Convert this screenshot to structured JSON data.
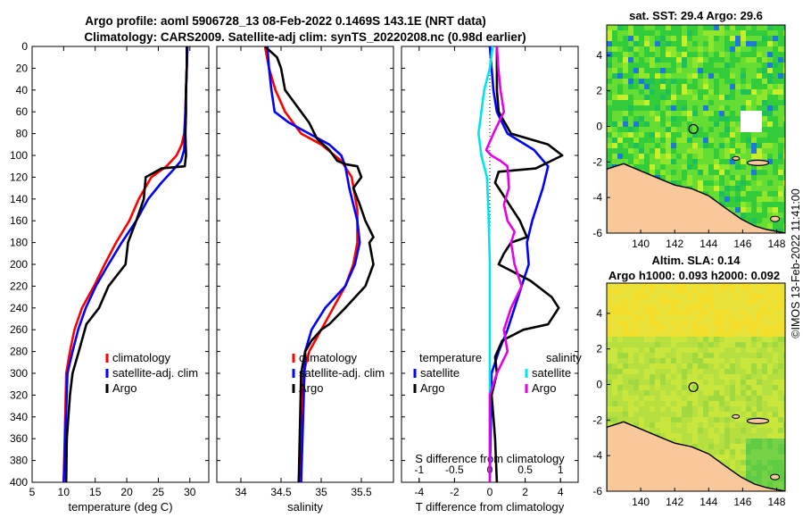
{
  "header": {
    "title_line1": "Argo profile: aoml 5906728_13 08-Feb-2022 0.1469S 143.1E (NRT data)",
    "title_line2": "Climatology: CARS2009. Satellite-adj clim: synTS_20220208.nc (0.98d earlier)"
  },
  "watermark": "©IMOS 13-Feb-2022 11:41:00",
  "colors": {
    "climatology": "#ff0000",
    "satellite": "#0000ff",
    "argo": "#000000",
    "sal_satellite": "#00e5e5",
    "sal_argo": "#e600e6",
    "land": "#f8c89a"
  },
  "chart_data": [
    {
      "type": "line",
      "id": "temperature",
      "xlabel": "temperature (deg C)",
      "ylabel": "",
      "xlim": [
        5,
        33
      ],
      "ylim": [
        400,
        0
      ],
      "xticks": [
        5,
        10,
        15,
        20,
        25,
        30
      ],
      "yticks": [
        0,
        20,
        40,
        60,
        80,
        100,
        120,
        140,
        160,
        180,
        200,
        220,
        240,
        260,
        280,
        300,
        320,
        340,
        360,
        380,
        400
      ],
      "legend": [
        "climatology",
        "satellite-adj. clim",
        "Argo"
      ],
      "series": [
        {
          "name": "climatology",
          "color": "#ff0000",
          "x": [
            29.6,
            29.5,
            29.4,
            29.3,
            29.1,
            28.7,
            27.9,
            26.3,
            23.9,
            21.9,
            20.4,
            18.3,
            16.5,
            14.8,
            12.9,
            11.7,
            11.0,
            10.4,
            10.0
          ],
          "y": [
            0,
            20,
            40,
            60,
            80,
            90,
            100,
            110,
            120,
            140,
            160,
            180,
            200,
            220,
            240,
            260,
            280,
            300,
            400
          ]
        },
        {
          "name": "satellite-adj. clim",
          "color": "#0000ff",
          "x": [
            29.6,
            29.5,
            29.4,
            29.3,
            29.2,
            29.1,
            28.6,
            27.1,
            25.5,
            23.4,
            21.5,
            19.2,
            17.1,
            15.1,
            13.5,
            12.3,
            11.4,
            10.6,
            10.0
          ],
          "y": [
            0,
            20,
            40,
            60,
            80,
            95,
            105,
            115,
            125,
            140,
            160,
            180,
            200,
            220,
            240,
            260,
            280,
            300,
            400
          ]
        },
        {
          "name": "Argo",
          "color": "#000000",
          "x": [
            29.5,
            29.5,
            29.4,
            29.4,
            29.3,
            29.4,
            29.2,
            25.5,
            23.0,
            22.7,
            21.5,
            20.2,
            19.8,
            17.1,
            15.6,
            13.6,
            12.4,
            11.4,
            11.0,
            10.5,
            10.4
          ],
          "y": [
            0,
            20,
            40,
            60,
            80,
            100,
            110,
            112,
            120,
            140,
            160,
            180,
            200,
            220,
            240,
            255,
            280,
            300,
            320,
            360,
            400
          ]
        }
      ]
    },
    {
      "type": "line",
      "id": "salinity",
      "xlabel": "salinity",
      "ylabel": "",
      "xlim": [
        33.7,
        35.9
      ],
      "ylim": [
        400,
        0
      ],
      "xticks": [
        34,
        34.5,
        35,
        35.5
      ],
      "legend": [
        "climatology",
        "satellite-adj. clim",
        "Argo"
      ],
      "series": [
        {
          "name": "climatology",
          "color": "#ff0000",
          "x": [
            34.3,
            34.35,
            34.43,
            34.55,
            34.75,
            35.0,
            35.25,
            35.38,
            35.45,
            35.45,
            35.4,
            35.3,
            35.15,
            35.0,
            34.85,
            34.78,
            34.72
          ],
          "y": [
            0,
            20,
            40,
            60,
            80,
            90,
            105,
            120,
            150,
            180,
            200,
            220,
            240,
            260,
            280,
            300,
            400
          ]
        },
        {
          "name": "satellite-adj. clim",
          "color": "#0000ff",
          "x": [
            34.33,
            34.35,
            34.38,
            34.42,
            34.6,
            34.85,
            35.1,
            35.25,
            35.3,
            35.35,
            35.45,
            35.48,
            35.42,
            35.3,
            35.05,
            34.88,
            34.8,
            34.75
          ],
          "y": [
            0,
            20,
            40,
            60,
            70,
            80,
            90,
            100,
            110,
            130,
            160,
            180,
            200,
            220,
            240,
            260,
            280,
            400
          ]
        },
        {
          "name": "Argo",
          "color": "#000000",
          "x": [
            34.3,
            34.45,
            34.5,
            34.55,
            34.65,
            34.75,
            34.85,
            34.95,
            35.1,
            35.2,
            35.3,
            35.45,
            35.5,
            35.4,
            35.48,
            35.55,
            35.65,
            35.6,
            35.65,
            35.55,
            35.3,
            35.1,
            35.0,
            34.88,
            34.8,
            34.75,
            34.72
          ],
          "y": [
            0,
            10,
            20,
            40,
            50,
            60,
            70,
            85,
            95,
            105,
            108,
            110,
            120,
            130,
            145,
            160,
            175,
            180,
            200,
            220,
            240,
            255,
            260,
            270,
            280,
            300,
            400
          ]
        }
      ]
    },
    {
      "type": "line",
      "id": "difference",
      "xlabel": "T difference from climatology",
      "xlabel_top": "S difference from climatology",
      "xlim": [
        -5,
        5
      ],
      "ylim": [
        400,
        0
      ],
      "xticks": [
        -4,
        -2,
        0,
        2,
        4
      ],
      "xticks_top": [
        -1,
        -0.5,
        0,
        0.5,
        1
      ],
      "legend_temperature_title": "temperature",
      "legend_salinity_title": "salinity",
      "legend_temperature": [
        "satellite",
        "Argo"
      ],
      "legend_salinity": [
        "satellite",
        "Argo"
      ],
      "series": [
        {
          "name": "T satellite",
          "color": "#0000ff",
          "x": [
            0.0,
            0.1,
            0.2,
            0.4,
            1.0,
            2.5,
            3.3,
            3.0,
            2.4,
            2.1,
            2.2,
            1.8,
            1.4,
            1.0,
            0.5,
            0.1,
            0.0
          ],
          "y": [
            0,
            20,
            40,
            60,
            80,
            95,
            110,
            130,
            160,
            180,
            200,
            220,
            240,
            260,
            280,
            300,
            400
          ]
        },
        {
          "name": "T Argo",
          "color": "#000000",
          "x": [
            0.4,
            0.4,
            0.4,
            0.5,
            1.2,
            3.3,
            4.1,
            2.6,
            0.5,
            0.3,
            0.7,
            1.1,
            1.7,
            2.1,
            1.2,
            0.8,
            0.5,
            2.3,
            3.5,
            3.9,
            3.3,
            1.9,
            0.7,
            0.3,
            0.4,
            0.1,
            0.2,
            0.3,
            0.4
          ],
          "y": [
            0,
            20,
            40,
            60,
            80,
            90,
            100,
            112,
            115,
            125,
            135,
            145,
            160,
            175,
            180,
            190,
            200,
            215,
            230,
            240,
            255,
            260,
            270,
            285,
            300,
            320,
            340,
            360,
            400
          ]
        },
        {
          "name": "S satellite",
          "color": "#00e5e5",
          "x": [
            0.04,
            0.0,
            -0.08,
            -0.12,
            -0.16,
            -0.12,
            -0.04,
            -0.02,
            0.0,
            0.0,
            0.0
          ],
          "y": [
            0,
            20,
            40,
            60,
            80,
            100,
            120,
            150,
            200,
            300,
            400
          ]
        },
        {
          "name": "S Argo",
          "color": "#e600e6",
          "x": [
            0.1,
            0.12,
            0.15,
            0.2,
            0.05,
            -0.05,
            0.02,
            0.15,
            0.25,
            0.27,
            0.2,
            0.25,
            0.35,
            0.3,
            0.35,
            0.45,
            0.3,
            0.2,
            0.25,
            0.1,
            0.0,
            0.0,
            0.0
          ],
          "y": [
            0,
            20,
            40,
            60,
            80,
            95,
            100,
            105,
            110,
            130,
            145,
            160,
            170,
            180,
            200,
            220,
            240,
            260,
            280,
            300,
            320,
            360,
            400
          ]
        }
      ]
    },
    {
      "type": "heatmap",
      "id": "sst-map",
      "title": "sat. SST: 29.4 Argo: 29.6",
      "xlim": [
        138,
        148.5
      ],
      "ylim": [
        -6,
        5.7
      ],
      "xticks": [
        140,
        142,
        144,
        146,
        148
      ],
      "yticks": [
        -6,
        -4,
        -2,
        0,
        2,
        4
      ],
      "argo_position": [
        143.1,
        -0.1469
      ]
    },
    {
      "type": "heatmap",
      "id": "sla-map",
      "title": "Altim. SLA: 0.14",
      "subtitle": "Argo h1000: 0.093 h2000: 0.092",
      "xlim": [
        138,
        148.5
      ],
      "ylim": [
        -6,
        5.7
      ],
      "xticks": [
        140,
        142,
        144,
        146,
        148
      ],
      "yticks": [
        -6,
        -4,
        -2,
        0,
        2,
        4
      ],
      "argo_position": [
        143.1,
        -0.1469
      ]
    }
  ]
}
